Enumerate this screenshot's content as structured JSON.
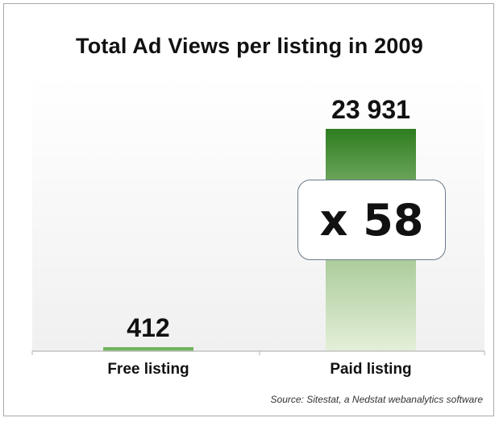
{
  "chart_data": {
    "type": "bar",
    "title": "Total Ad Views per listing in 2009",
    "categories": [
      "Free listing",
      "Paid listing"
    ],
    "values": [
      412,
      23931
    ],
    "value_labels": [
      "412",
      "23 931"
    ],
    "xlabel": "",
    "ylabel": "",
    "ylim": [
      0,
      23931
    ],
    "grid": false,
    "legend": "none",
    "annotation": "x 58",
    "source": "Source: Sitestat, a Nedstat webanalytics software",
    "colors": {
      "bar_top": "#2e7d1f",
      "bar_bottom": "#e4efd8",
      "axis": "#b0b0b0"
    }
  }
}
